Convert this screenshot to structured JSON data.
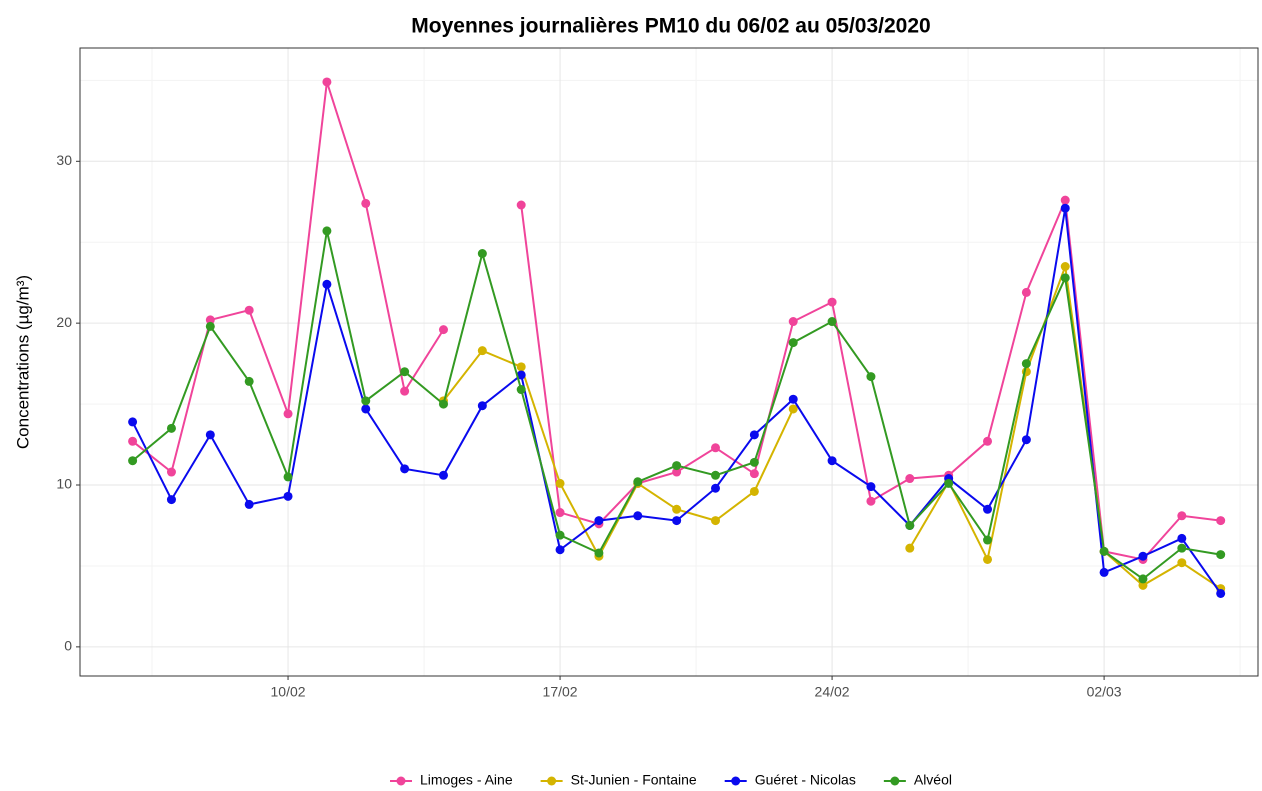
{
  "chart_data": {
    "type": "line",
    "title": "Moyennes journalières PM10 du 06/02 au 05/03/2020",
    "y_label": "Concentrations (µg/m³)",
    "categories": [
      null,
      null,
      null,
      null,
      "10/02",
      null,
      null,
      null,
      null,
      null,
      null,
      "17/02",
      null,
      null,
      null,
      null,
      null,
      null,
      "24/02",
      null,
      null,
      null,
      null,
      null,
      null,
      "02/03",
      null,
      null,
      null
    ],
    "ylim": [
      -1.8,
      37
    ],
    "yticks": [
      0,
      10,
      20,
      30
    ],
    "grid": true,
    "legend": "bottom",
    "series": [
      {
        "name": "Limoges - Aine",
        "color": "#f0449a",
        "values": [
          12.7,
          10.8,
          20.2,
          20.8,
          14.4,
          34.9,
          27.4,
          15.8,
          19.6,
          null,
          27.3,
          8.3,
          7.6,
          10.1,
          10.8,
          12.3,
          10.7,
          20.1,
          21.3,
          9.0,
          10.4,
          10.6,
          12.7,
          21.9,
          27.6,
          5.9,
          5.4,
          8.1,
          7.8
        ]
      },
      {
        "name": "St-Junien - Fontaine",
        "color": "#d4b400",
        "values": [
          null,
          null,
          null,
          null,
          null,
          null,
          null,
          null,
          15.2,
          18.3,
          17.3,
          10.1,
          5.6,
          10.1,
          8.5,
          7.8,
          9.6,
          14.7,
          null,
          null,
          6.1,
          10.2,
          5.4,
          17.0,
          23.5,
          5.9,
          3.8,
          5.2,
          3.6
        ]
      },
      {
        "name": "Guéret - Nicolas",
        "color": "#0a0aee",
        "values": [
          13.9,
          9.1,
          13.1,
          8.8,
          9.3,
          22.4,
          14.7,
          11.0,
          10.6,
          14.9,
          16.8,
          6.0,
          7.8,
          8.1,
          7.8,
          9.8,
          13.1,
          15.3,
          11.5,
          9.9,
          7.5,
          10.4,
          8.5,
          12.8,
          27.1,
          4.6,
          5.6,
          6.7,
          3.3
        ]
      },
      {
        "name": "Alvéol",
        "color": "#339a22",
        "values": [
          11.5,
          13.5,
          19.8,
          16.4,
          10.5,
          25.7,
          15.2,
          17.0,
          15.0,
          24.3,
          15.9,
          6.9,
          5.8,
          10.2,
          11.2,
          10.6,
          11.4,
          18.8,
          20.1,
          16.7,
          7.5,
          10.1,
          6.6,
          17.5,
          22.8,
          5.9,
          4.2,
          6.1,
          5.7
        ]
      }
    ]
  }
}
